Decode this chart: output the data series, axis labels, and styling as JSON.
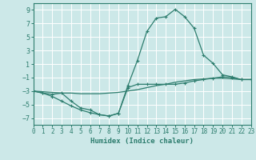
{
  "title": "",
  "xlabel": "Humidex (Indice chaleur)",
  "background_color": "#cce8e8",
  "line_color": "#2d7d6e",
  "x": [
    0,
    1,
    2,
    3,
    4,
    5,
    6,
    7,
    8,
    9,
    10,
    11,
    12,
    13,
    14,
    15,
    16,
    17,
    18,
    19,
    20,
    21,
    22,
    23
  ],
  "line_max": [
    -3.0,
    -3.3,
    -3.5,
    -3.3,
    -4.5,
    -5.5,
    -5.8,
    -6.5,
    -6.7,
    -6.3,
    -2.2,
    1.5,
    5.8,
    7.8,
    8.0,
    9.1,
    8.0,
    6.3,
    2.3,
    1.1,
    -0.6,
    -0.9,
    -1.3,
    -1.3
  ],
  "line_min": [
    -3.0,
    -3.3,
    -3.8,
    -4.5,
    -5.2,
    -5.8,
    -6.2,
    -6.5,
    -6.7,
    -6.3,
    -2.5,
    -2.0,
    -2.0,
    -2.0,
    -2.0,
    -2.0,
    -1.8,
    -1.5,
    -1.3,
    -1.1,
    -0.9,
    -1.0,
    -1.3,
    -1.3
  ],
  "line_mean": [
    -3.0,
    -3.1,
    -3.2,
    -3.3,
    -3.3,
    -3.4,
    -3.4,
    -3.4,
    -3.3,
    -3.2,
    -3.0,
    -2.8,
    -2.5,
    -2.2,
    -2.0,
    -1.7,
    -1.5,
    -1.3,
    -1.2,
    -1.1,
    -1.1,
    -1.2,
    -1.3,
    -1.3
  ],
  "xlim": [
    0,
    23
  ],
  "ylim": [
    -8,
    10
  ],
  "yticks": [
    -7,
    -5,
    -3,
    -1,
    1,
    3,
    5,
    7,
    9
  ],
  "xticks": [
    0,
    1,
    2,
    3,
    4,
    5,
    6,
    7,
    8,
    9,
    10,
    11,
    12,
    13,
    14,
    15,
    16,
    17,
    18,
    19,
    20,
    21,
    22,
    23
  ],
  "grid_color": "#ffffff",
  "marker": "+"
}
